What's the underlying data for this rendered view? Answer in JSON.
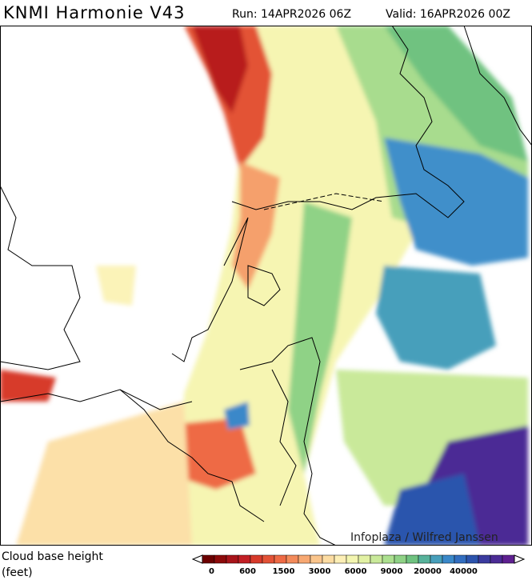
{
  "header": {
    "model": "KNMI Harmonie V43",
    "run": "Run: 14APR2026 06Z",
    "valid": "Valid: 16APR2026 00Z"
  },
  "map": {
    "credit": "Infoplaza / Wilfred Janssen"
  },
  "legend": {
    "title": "Cloud base height",
    "unit": "(feet)",
    "colors": [
      "#6b0000",
      "#8c0a0a",
      "#a8141a",
      "#c21f24",
      "#d73a2a",
      "#e35236",
      "#ee6a45",
      "#f38a5a",
      "#f7a872",
      "#fac58c",
      "#fcdca2",
      "#fdefb6",
      "#f3f5b0",
      "#e2f1a4",
      "#c9e99a",
      "#ace08f",
      "#8fd286",
      "#6fc280",
      "#57b29b",
      "#479fbb",
      "#3a88c9",
      "#326ec0",
      "#2c54ad",
      "#3b3b9f",
      "#4b2b95",
      "#5e2090"
    ],
    "tick_labels": [
      "0",
      "600",
      "1500",
      "3000",
      "6000",
      "9000",
      "20000",
      "40000"
    ]
  }
}
